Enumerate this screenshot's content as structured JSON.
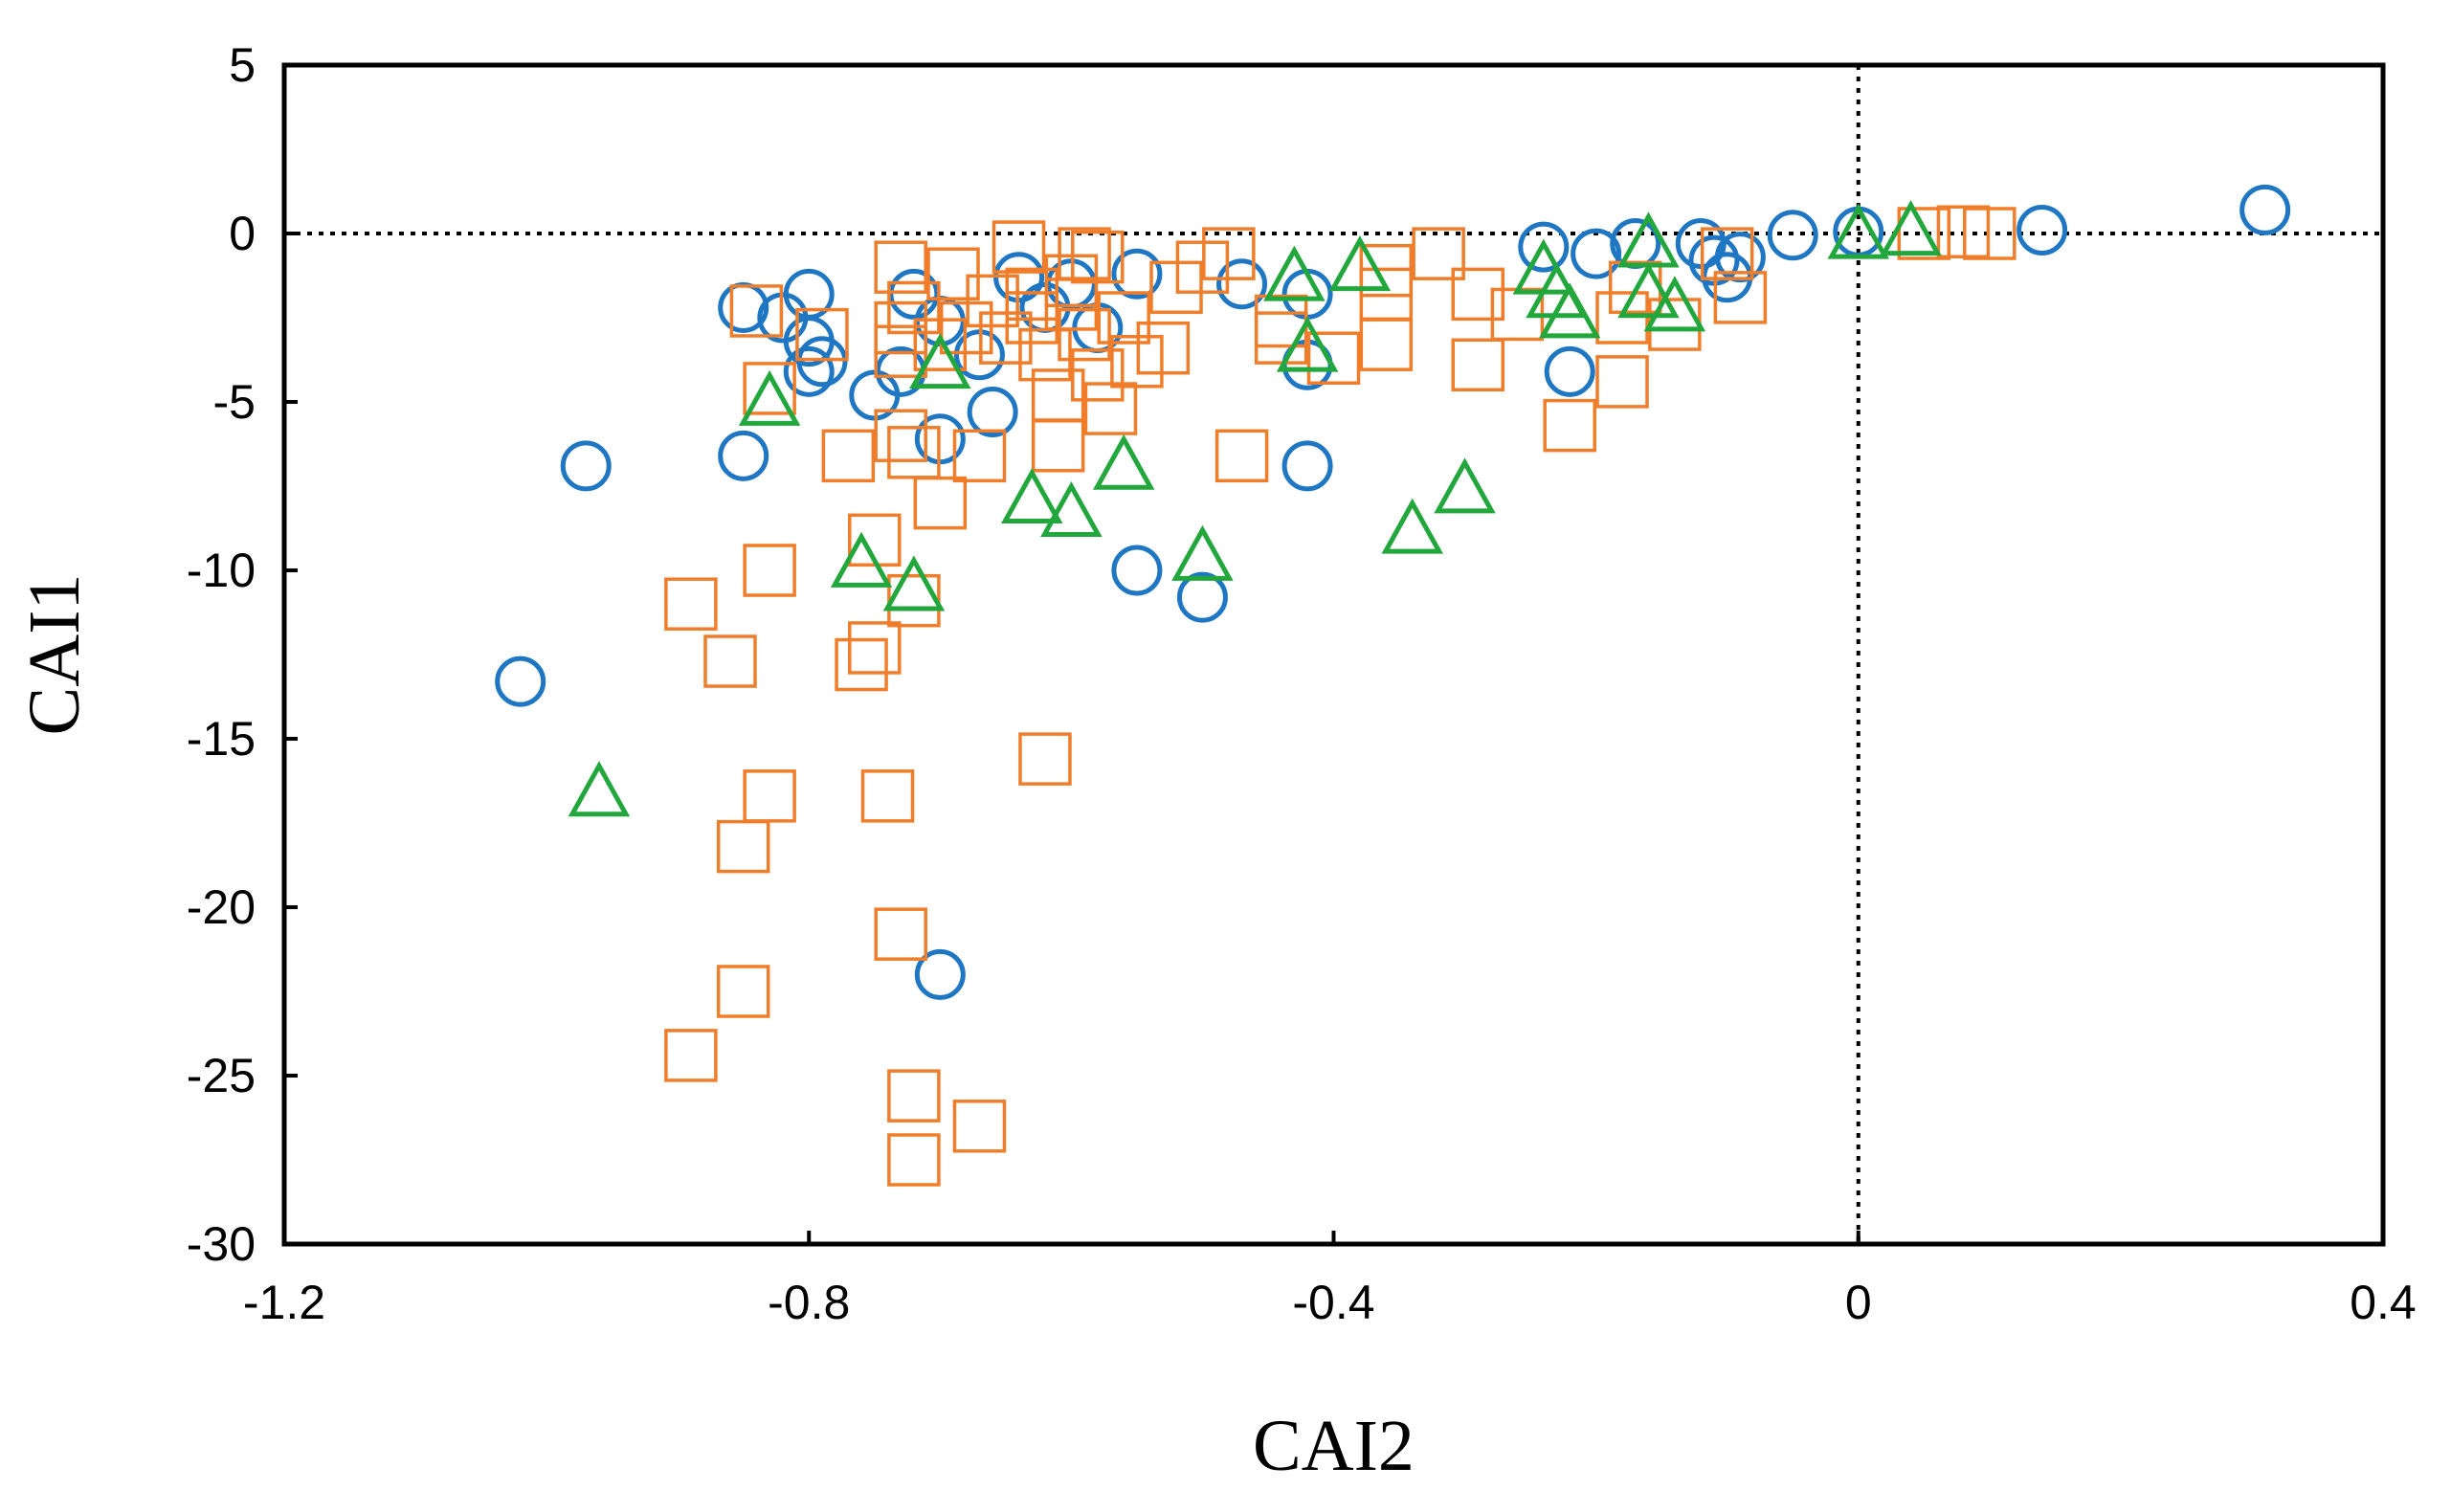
{
  "chart_data": {
    "type": "scatter",
    "title": "",
    "xlabel": "CAI2",
    "ylabel": "CAI1",
    "xlim": [
      -1.2,
      0.4
    ],
    "ylim": [
      -30,
      5
    ],
    "xticks": [
      -1.2,
      -0.8,
      -0.4,
      0,
      0.4
    ],
    "xtick_labels": [
      "-1.2",
      "-0.8",
      "-0.4",
      "0",
      "0.4"
    ],
    "yticks": [
      5,
      0,
      -5,
      -10,
      -15,
      -20,
      -25,
      -30
    ],
    "ytick_labels": [
      "5",
      "0",
      "-5",
      "-10",
      "-15",
      "-20",
      "-25",
      "-30"
    ],
    "reference_lines": {
      "x": 0,
      "y": 0,
      "style": "dotted"
    },
    "grid": false,
    "legend": "none",
    "series": [
      {
        "name": "circles",
        "marker": "circle",
        "color": "#1f77c4",
        "points": [
          [
            -1.02,
            -13.3
          ],
          [
            -0.97,
            -6.9
          ],
          [
            -0.85,
            -6.6
          ],
          [
            -0.85,
            -2.2
          ],
          [
            -0.82,
            -2.5
          ],
          [
            -0.8,
            -1.8
          ],
          [
            -0.8,
            -3.2
          ],
          [
            -0.8,
            -4.1
          ],
          [
            -0.79,
            -3.8
          ],
          [
            -0.75,
            -4.8
          ],
          [
            -0.73,
            -4.1
          ],
          [
            -0.72,
            -1.8
          ],
          [
            -0.7,
            -6.1
          ],
          [
            -0.7,
            -22.0
          ],
          [
            -0.7,
            -2.6
          ],
          [
            -0.67,
            -3.6
          ],
          [
            -0.66,
            -5.3
          ],
          [
            -0.64,
            -1.3
          ],
          [
            -0.62,
            -2.2
          ],
          [
            -0.6,
            -1.5
          ],
          [
            -0.58,
            -2.8
          ],
          [
            -0.55,
            -1.2
          ],
          [
            -0.55,
            -10.0
          ],
          [
            -0.5,
            -10.8
          ],
          [
            -0.47,
            -1.5
          ],
          [
            -0.42,
            -3.9
          ],
          [
            -0.42,
            -6.9
          ],
          [
            -0.42,
            -1.8
          ],
          [
            -0.24,
            -0.4
          ],
          [
            -0.22,
            -4.1
          ],
          [
            -0.2,
            -0.6
          ],
          [
            -0.17,
            -0.3
          ],
          [
            -0.12,
            -0.3
          ],
          [
            -0.11,
            -0.8
          ],
          [
            -0.1,
            -1.3
          ],
          [
            -0.09,
            -0.7
          ],
          [
            -0.05,
            -0.05
          ],
          [
            0.0,
            0.05
          ],
          [
            0.14,
            0.1
          ],
          [
            0.31,
            0.7
          ]
        ]
      },
      {
        "name": "squares",
        "marker": "square",
        "color": "#f07d2a",
        "points": [
          [
            -0.89,
            -11.0
          ],
          [
            -0.89,
            -24.4
          ],
          [
            -0.86,
            -12.7
          ],
          [
            -0.85,
            -18.2
          ],
          [
            -0.85,
            -22.5
          ],
          [
            -0.84,
            -2.3
          ],
          [
            -0.83,
            -16.7
          ],
          [
            -0.83,
            -10.0
          ],
          [
            -0.83,
            -4.6
          ],
          [
            -0.79,
            -3.0
          ],
          [
            -0.77,
            -6.6
          ],
          [
            -0.76,
            -12.8
          ],
          [
            -0.75,
            -12.3
          ],
          [
            -0.75,
            -9.1
          ],
          [
            -0.74,
            -16.7
          ],
          [
            -0.73,
            -20.8
          ],
          [
            -0.73,
            -6.0
          ],
          [
            -0.73,
            -2.8
          ],
          [
            -0.73,
            -1.0
          ],
          [
            -0.73,
            -3.5
          ],
          [
            -0.72,
            -25.6
          ],
          [
            -0.72,
            -27.5
          ],
          [
            -0.72,
            -10.9
          ],
          [
            -0.72,
            -6.5
          ],
          [
            -0.72,
            -2.2
          ],
          [
            -0.7,
            -8.0
          ],
          [
            -0.7,
            -3.3
          ],
          [
            -0.69,
            -1.2
          ],
          [
            -0.68,
            -2.8
          ],
          [
            -0.67,
            -26.5
          ],
          [
            -0.67,
            -6.6
          ],
          [
            -0.66,
            -2.0
          ],
          [
            -0.65,
            -3.1
          ],
          [
            -0.64,
            -0.4
          ],
          [
            -0.63,
            -2.5
          ],
          [
            -0.63,
            -1.8
          ],
          [
            -0.62,
            -15.6
          ],
          [
            -0.62,
            -3.6
          ],
          [
            -0.61,
            -4.8
          ],
          [
            -0.61,
            -6.3
          ],
          [
            -0.6,
            -2.1
          ],
          [
            -0.6,
            -1.4
          ],
          [
            -0.59,
            -0.6
          ],
          [
            -0.59,
            -3.0
          ],
          [
            -0.58,
            -4.2
          ],
          [
            -0.58,
            -0.7
          ],
          [
            -0.57,
            -5.2
          ],
          [
            -0.56,
            -2.5
          ],
          [
            -0.55,
            -3.8
          ],
          [
            -0.53,
            -3.4
          ],
          [
            -0.52,
            -1.6
          ],
          [
            -0.5,
            -1.0
          ],
          [
            -0.48,
            -0.6
          ],
          [
            -0.47,
            -6.6
          ],
          [
            -0.44,
            -2.6
          ],
          [
            -0.44,
            -3.1
          ],
          [
            -0.4,
            -3.7
          ],
          [
            -0.36,
            -3.3
          ],
          [
            -0.36,
            -1.8
          ],
          [
            -0.36,
            -1.1
          ],
          [
            -0.32,
            -0.6
          ],
          [
            -0.29,
            -1.8
          ],
          [
            -0.29,
            -3.9
          ],
          [
            -0.26,
            -2.4
          ],
          [
            -0.22,
            -5.7
          ],
          [
            -0.18,
            -4.4
          ],
          [
            -0.18,
            -2.5
          ],
          [
            -0.17,
            -1.6
          ],
          [
            -0.14,
            -2.7
          ],
          [
            -0.1,
            -0.6
          ],
          [
            -0.09,
            -1.9
          ],
          [
            0.05,
            0.0
          ],
          [
            0.08,
            0.05
          ],
          [
            0.1,
            0.0
          ]
        ]
      },
      {
        "name": "triangles",
        "marker": "triangle",
        "color": "#22a73c",
        "points": [
          [
            -0.96,
            -16.6
          ],
          [
            -0.83,
            -5.0
          ],
          [
            -0.76,
            -9.8
          ],
          [
            -0.72,
            -10.5
          ],
          [
            -0.7,
            -3.9
          ],
          [
            -0.63,
            -7.9
          ],
          [
            -0.6,
            -8.3
          ],
          [
            -0.56,
            -6.9
          ],
          [
            -0.5,
            -9.6
          ],
          [
            -0.43,
            -1.3
          ],
          [
            -0.42,
            -3.4
          ],
          [
            -0.38,
            -1.0
          ],
          [
            -0.34,
            -8.8
          ],
          [
            -0.3,
            -7.6
          ],
          [
            -0.24,
            -1.1
          ],
          [
            -0.23,
            -1.8
          ],
          [
            -0.22,
            -2.4
          ],
          [
            -0.16,
            -0.3
          ],
          [
            -0.16,
            -1.8
          ],
          [
            -0.14,
            -2.2
          ],
          [
            0.0,
            -0.05
          ],
          [
            0.04,
            0.05
          ]
        ]
      }
    ]
  }
}
